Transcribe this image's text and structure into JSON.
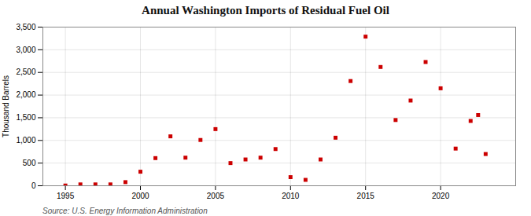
{
  "chart_data": {
    "type": "scatter",
    "title": "Annual Washington Imports of Residual Fuel Oil",
    "ylabel": "Thousand Barrels",
    "source": "Source: U.S. Energy Information Administration",
    "x": [
      1995,
      1996,
      1997,
      1998,
      1999,
      2000,
      2001,
      2002,
      2003,
      2004,
      2005,
      2006,
      2007,
      2008,
      2009,
      2010,
      2011,
      2012,
      2013,
      2014,
      2015,
      2016,
      2017,
      2018,
      2019,
      2020,
      2021,
      2022,
      2022.5,
      2023
    ],
    "values": [
      5,
      30,
      30,
      30,
      80,
      310,
      610,
      1090,
      620,
      1010,
      1250,
      500,
      580,
      620,
      810,
      190,
      130,
      580,
      1060,
      2310,
      3290,
      2620,
      1450,
      1880,
      2730,
      2150,
      820,
      1430,
      1560,
      700
    ],
    "color": "#cc0000",
    "marker": "square",
    "xlim": [
      1993.5,
      2025
    ],
    "xticks": [
      1995,
      2000,
      2005,
      2010,
      2015,
      2020
    ],
    "ylim": [
      0,
      3500
    ],
    "yticks": [
      0,
      500,
      {
        "value": 1000,
        "label": "1,000"
      },
      {
        "value": 1500,
        "label": "1,500"
      },
      {
        "value": 2000,
        "label": "2,000"
      },
      {
        "value": 2500,
        "label": "2,500"
      },
      {
        "value": 3000,
        "label": "3,000"
      },
      {
        "value": 3500,
        "label": "3,500"
      }
    ],
    "grid": true
  }
}
